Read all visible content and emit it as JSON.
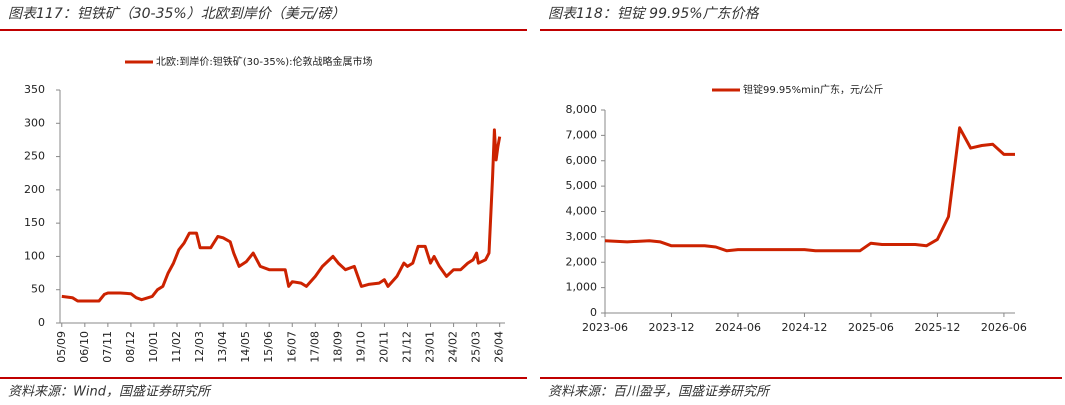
{
  "chart_data": [
    {
      "type": "line",
      "title": "图表117：钽铁矿（30-35%）北欧到岸价（美元/磅）",
      "source": "资料来源：Wind，国盛证券研究所",
      "x": [
        "05/09",
        "06/03",
        "06/06",
        "06/10",
        "07/06",
        "07/09",
        "07/11",
        "08/06",
        "08/12",
        "09/03",
        "09/06",
        "09/12",
        "10/03",
        "10/06",
        "10/09",
        "10/12",
        "11/03",
        "11/06",
        "11/09",
        "12/01",
        "12/03",
        "12/09",
        "13/01",
        "13/04",
        "13/08",
        "13/10",
        "14/01",
        "14/05",
        "14/09",
        "15/01",
        "15/06",
        "16/03",
        "16/05",
        "16/07",
        "16/12",
        "17/03",
        "17/08",
        "17/12",
        "18/06",
        "18/09",
        "19/01",
        "19/06",
        "19/10",
        "20/02",
        "20/08",
        "20/11",
        "21/01",
        "21/06",
        "21/10",
        "21/12",
        "22/03",
        "22/06",
        "22/10",
        "23/01",
        "23/03",
        "23/06",
        "23/10",
        "24/02",
        "24/06",
        "24/10",
        "25/01",
        "25/03",
        "25/04",
        "25/08",
        "25/10",
        "25/12",
        "26/01",
        "26/02",
        "26/03",
        "26/04"
      ],
      "series": [
        {
          "name": "北欧:到岸价:钽铁矿(30-35%):伦敦战略金属市场",
          "color": "#cc2200",
          "values": [
            40,
            38,
            33,
            33,
            33,
            43,
            45,
            45,
            44,
            38,
            35,
            40,
            50,
            55,
            75,
            90,
            110,
            120,
            135,
            135,
            113,
            113,
            130,
            128,
            122,
            105,
            85,
            92,
            105,
            85,
            80,
            80,
            55,
            62,
            60,
            55,
            70,
            85,
            100,
            90,
            80,
            85,
            55,
            58,
            60,
            65,
            55,
            70,
            90,
            85,
            90,
            115,
            115,
            90,
            100,
            85,
            70,
            80,
            80,
            90,
            95,
            105,
            90,
            95,
            105,
            220,
            290,
            245,
            265,
            280
          ]
        }
      ],
      "xlim": [
        "05/08",
        "26/07"
      ],
      "xticks": [
        "05/09",
        "06/10",
        "07/11",
        "08/12",
        "10/01",
        "11/02",
        "12/03",
        "13/04",
        "14/05",
        "15/06",
        "16/07",
        "17/08",
        "18/09",
        "19/10",
        "20/11",
        "21/12",
        "23/01",
        "24/02",
        "25/03",
        "26/04"
      ],
      "ylim": [
        0,
        350
      ],
      "yticks": [
        0,
        50,
        100,
        150,
        200,
        250,
        300,
        350
      ]
    },
    {
      "type": "line",
      "title": "图表118：钽锭 99.95%广东价格",
      "source": "资料来源：百川盈孚，国盛证券研究所",
      "x": [
        "2023-06",
        "2023-08",
        "2023-10",
        "2023-11",
        "2023-12",
        "2024-03",
        "2024-04",
        "2024-05",
        "2024-06",
        "2024-09",
        "2024-12",
        "2025-01",
        "2025-05",
        "2025-06",
        "2025-07",
        "2025-10",
        "2025-11",
        "2025-12",
        "2026-01",
        "2026-02",
        "2026-03",
        "2026-04",
        "2026-05",
        "2026-06",
        "2026-07"
      ],
      "series": [
        {
          "name": "钽锭99.95%min广东，元/公斤",
          "color": "#cc2200",
          "values": [
            2850,
            2800,
            2850,
            2800,
            2650,
            2650,
            2600,
            2450,
            2500,
            2500,
            2500,
            2450,
            2450,
            2750,
            2700,
            2700,
            2650,
            2900,
            3800,
            7300,
            6500,
            6600,
            6650,
            6250,
            6250
          ]
        }
      ],
      "xlim": [
        "2023-06",
        "2026-07"
      ],
      "xticks": [
        "2023-06",
        "2023-12",
        "2024-06",
        "2024-12",
        "2025-06",
        "2025-12",
        "2026-06"
      ],
      "ylim": [
        0,
        8000
      ],
      "yticks": [
        0,
        {
          "value": 1000,
          "label": "1,000"
        },
        {
          "value": 2000,
          "label": "2,000"
        },
        {
          "value": 3000,
          "label": "3,000"
        },
        {
          "value": 4000,
          "label": "4,000"
        },
        {
          "value": 5000,
          "label": "5,000"
        },
        {
          "value": 6000,
          "label": "6,000"
        },
        {
          "value": 7000,
          "label": "7,000"
        },
        {
          "value": 8000,
          "label": "8,000"
        }
      ]
    }
  ]
}
